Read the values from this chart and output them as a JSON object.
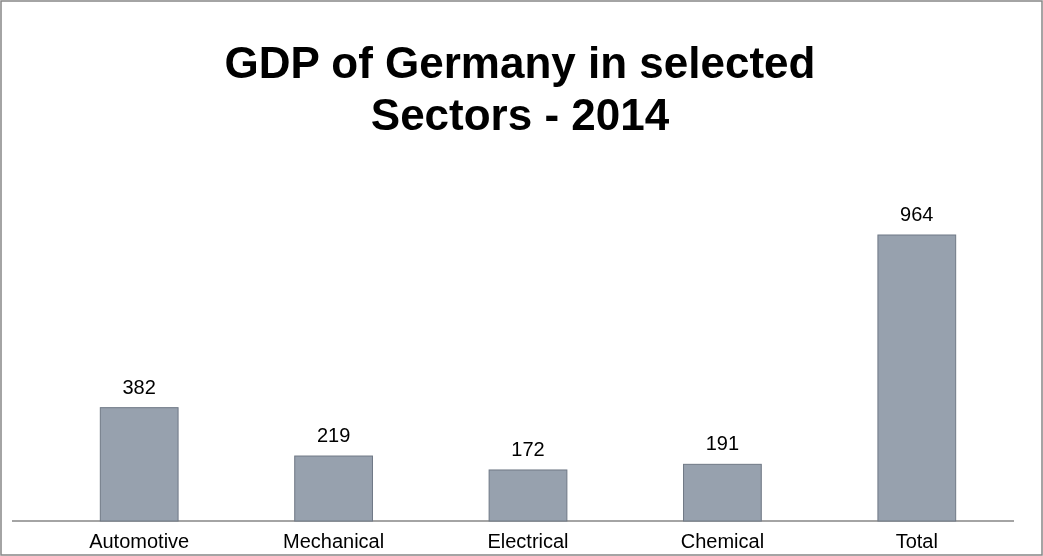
{
  "chart_data": {
    "type": "bar",
    "title": "GDP of Germany in selected Sectors - 2014",
    "categories": [
      "Automotive",
      "Mechanical",
      "Electrical",
      "Chemical",
      "Total"
    ],
    "values": [
      382,
      219,
      172,
      191,
      964
    ],
    "color": "#97a1ae",
    "data_labels": true
  }
}
